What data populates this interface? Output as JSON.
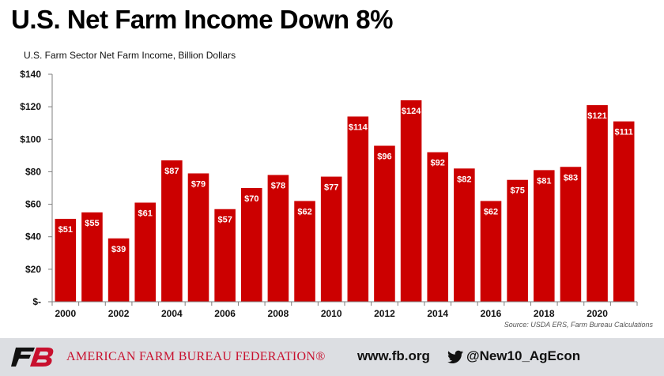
{
  "header": {
    "title": "U.S. Net Farm Income Down 8%",
    "subtitle": "U.S. Farm Sector Net Farm Income, Billion Dollars"
  },
  "source": "Source: USDA ERS, Farm Bureau Calculations",
  "footer": {
    "org_name": "AMERICAN FARM BUREAU FEDERATION®",
    "website": "www.fb.org",
    "twitter_handle": "@New10_AgEcon",
    "logo_icon": "fb-logo-icon",
    "social_icon": "twitter-bird-icon"
  },
  "colors": {
    "bar": "#cc0000",
    "label": "#ffffff",
    "brand_red": "#c8102e",
    "footer_bg": "#dcdee2"
  },
  "chart_data": {
    "type": "bar",
    "x": [
      2000,
      2001,
      2002,
      2003,
      2004,
      2005,
      2006,
      2007,
      2008,
      2009,
      2010,
      2011,
      2012,
      2013,
      2014,
      2015,
      2016,
      2017,
      2018,
      2019,
      2020,
      2021
    ],
    "values": [
      51,
      55,
      39,
      61,
      87,
      79,
      57,
      70,
      78,
      62,
      77,
      114,
      96,
      124,
      92,
      82,
      62,
      75,
      81,
      83,
      121,
      111
    ],
    "data_labels": [
      "$51",
      "$55",
      "$39",
      "$61",
      "$87",
      "$79",
      "$57",
      "$70",
      "$78",
      "$62",
      "$77",
      "$114",
      "$96",
      "$124",
      "$92",
      "$82",
      "$62",
      "$75",
      "$81",
      "$83",
      "$121",
      "$111"
    ],
    "x_tick_labels": [
      "2000",
      "2002",
      "2004",
      "2006",
      "2008",
      "2010",
      "2012",
      "2014",
      "2016",
      "2018",
      "2020"
    ],
    "y_tick_values": [
      0,
      20,
      40,
      60,
      80,
      100,
      120,
      140
    ],
    "y_tick_labels": [
      "$-",
      "$20",
      "$40",
      "$60",
      "$80",
      "$100",
      "$120",
      "$140"
    ],
    "ylim": [
      0,
      140
    ],
    "xlabel": "",
    "ylabel": "",
    "grid": false,
    "legend": "none"
  }
}
